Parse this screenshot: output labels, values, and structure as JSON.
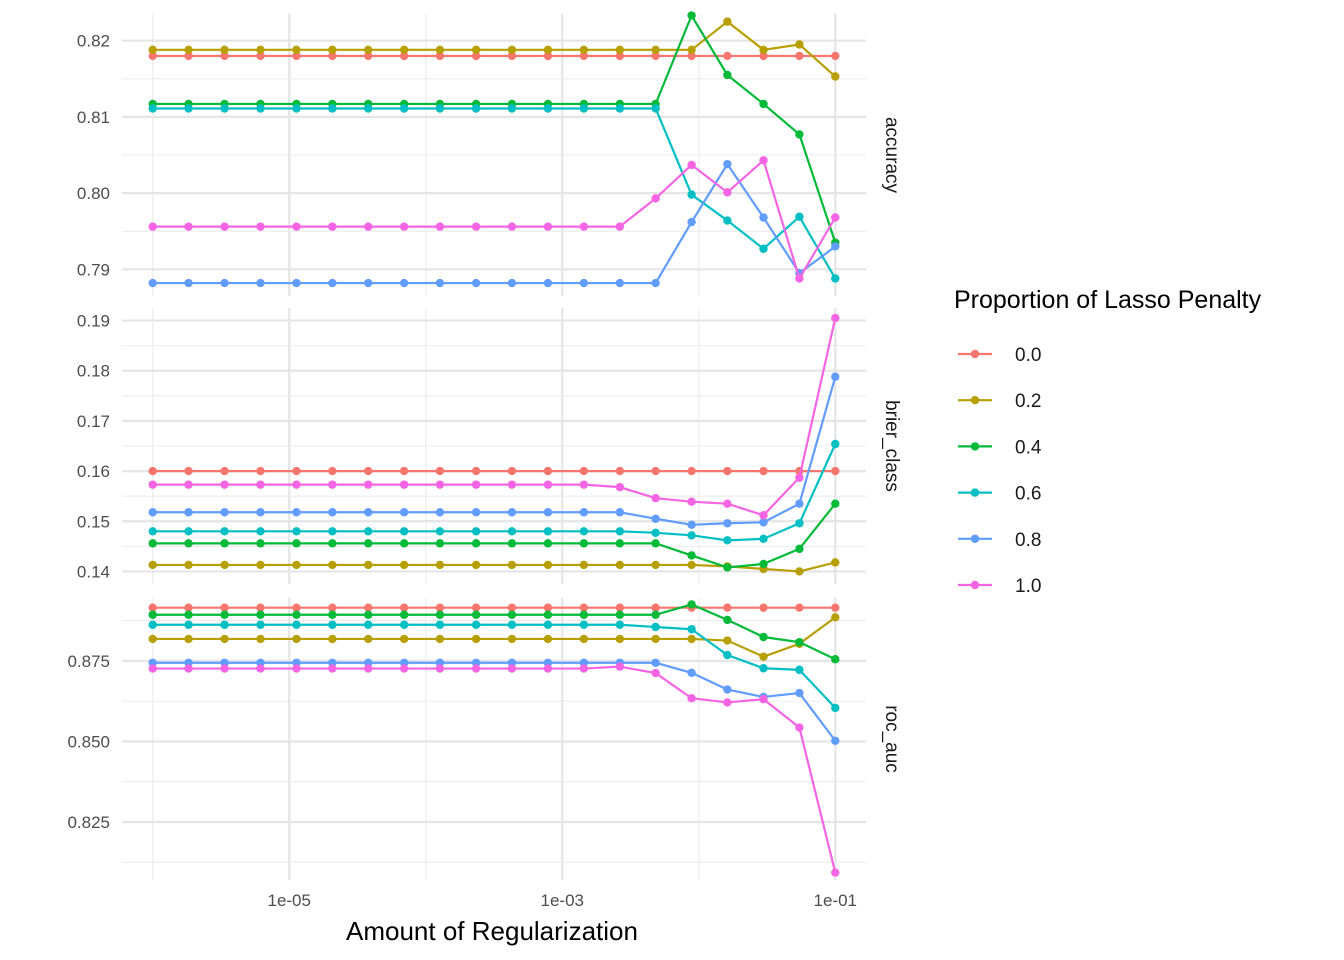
{
  "chart_data": {
    "type": "line",
    "xlabel": "Amount of Regularization",
    "x_scale": "log10",
    "x": [
      1e-06,
      1.83e-06,
      3.36e-06,
      6.16e-06,
      1.13e-05,
      2.07e-05,
      3.79e-05,
      6.95e-05,
      0.000127,
      0.000234,
      0.000428,
      0.000785,
      0.00144,
      0.00264,
      0.00483,
      0.00886,
      0.0162,
      0.0298,
      0.0546,
      0.1
    ],
    "x_tick_labels": [
      "1e-05",
      "1e-03",
      "1e-01"
    ],
    "legend": {
      "title": "Proportion of Lasso Penalty",
      "position": "right"
    },
    "series": [
      {
        "name": "0.0",
        "color": "#F8766D"
      },
      {
        "name": "0.2",
        "color": "#B79F00"
      },
      {
        "name": "0.4",
        "color": "#00BA38"
      },
      {
        "name": "0.6",
        "color": "#00BFC4"
      },
      {
        "name": "0.8",
        "color": "#619CFF"
      },
      {
        "name": "1.0",
        "color": "#F564E3"
      }
    ],
    "panels": [
      {
        "strip": "accuracy",
        "ylim": [
          0.7865,
          0.8235
        ],
        "y_ticks": [
          0.79,
          0.8,
          0.81,
          0.82
        ],
        "y_tick_labels": [
          "0.79",
          "0.80",
          "0.81",
          "0.82"
        ],
        "values": [
          [
            0.818,
            0.818,
            0.818,
            0.818,
            0.818,
            0.818,
            0.818,
            0.818,
            0.818,
            0.818,
            0.818,
            0.818,
            0.818,
            0.818,
            0.818,
            0.818,
            0.818,
            0.818,
            0.818,
            0.818
          ],
          [
            0.8188,
            0.8188,
            0.8188,
            0.8188,
            0.8188,
            0.8188,
            0.8188,
            0.8188,
            0.8188,
            0.8188,
            0.8188,
            0.8188,
            0.8188,
            0.8188,
            0.8188,
            0.8188,
            0.8225,
            0.8188,
            0.8195,
            0.8153
          ],
          [
            0.8117,
            0.8117,
            0.8117,
            0.8117,
            0.8117,
            0.8117,
            0.8117,
            0.8117,
            0.8117,
            0.8117,
            0.8117,
            0.8117,
            0.8117,
            0.8117,
            0.8117,
            0.8233,
            0.8155,
            0.8117,
            0.8077,
            0.7935
          ],
          [
            0.8111,
            0.8111,
            0.8111,
            0.8111,
            0.8111,
            0.8111,
            0.8111,
            0.8111,
            0.8111,
            0.8111,
            0.8111,
            0.8111,
            0.8111,
            0.8111,
            0.8111,
            0.7998,
            0.7964,
            0.7927,
            0.7969,
            0.7888
          ],
          [
            0.7882,
            0.7882,
            0.7882,
            0.7882,
            0.7882,
            0.7882,
            0.7882,
            0.7882,
            0.7882,
            0.7882,
            0.7882,
            0.7882,
            0.7882,
            0.7882,
            0.7882,
            0.7962,
            0.8038,
            0.7968,
            0.7895,
            0.793
          ],
          [
            0.7956,
            0.7956,
            0.7956,
            0.7956,
            0.7956,
            0.7956,
            0.7956,
            0.7956,
            0.7956,
            0.7956,
            0.7956,
            0.7956,
            0.7956,
            0.7956,
            0.7993,
            0.8037,
            0.8001,
            0.8043,
            0.7888,
            0.7968
          ]
        ]
      },
      {
        "strip": "brier_class",
        "ylim": [
          0.1375,
          0.1925
        ],
        "y_ticks": [
          0.14,
          0.15,
          0.16,
          0.17,
          0.18,
          0.19
        ],
        "y_tick_labels": [
          "0.14",
          "0.15",
          "0.16",
          "0.17",
          "0.18",
          "0.19"
        ],
        "values": [
          [
            0.16,
            0.16,
            0.16,
            0.16,
            0.16,
            0.16,
            0.16,
            0.16,
            0.16,
            0.16,
            0.16,
            0.16,
            0.16,
            0.16,
            0.16,
            0.16,
            0.16,
            0.16,
            0.16,
            0.16
          ],
          [
            0.1413,
            0.1413,
            0.1413,
            0.1413,
            0.1413,
            0.1413,
            0.1413,
            0.1413,
            0.1413,
            0.1413,
            0.1413,
            0.1413,
            0.1413,
            0.1413,
            0.1413,
            0.1413,
            0.141,
            0.1405,
            0.14,
            0.1418
          ],
          [
            0.1456,
            0.1456,
            0.1456,
            0.1456,
            0.1456,
            0.1456,
            0.1456,
            0.1456,
            0.1456,
            0.1456,
            0.1456,
            0.1456,
            0.1456,
            0.1456,
            0.1456,
            0.1432,
            0.1408,
            0.1415,
            0.1445,
            0.1535
          ],
          [
            0.148,
            0.148,
            0.148,
            0.148,
            0.148,
            0.148,
            0.148,
            0.148,
            0.148,
            0.148,
            0.148,
            0.148,
            0.148,
            0.148,
            0.1477,
            0.1472,
            0.1462,
            0.1465,
            0.1496,
            0.1654
          ],
          [
            0.1518,
            0.1518,
            0.1518,
            0.1518,
            0.1518,
            0.1518,
            0.1518,
            0.1518,
            0.1518,
            0.1518,
            0.1518,
            0.1518,
            0.1518,
            0.1518,
            0.1505,
            0.1493,
            0.1496,
            0.1498,
            0.1535,
            0.1788
          ],
          [
            0.1573,
            0.1573,
            0.1573,
            0.1573,
            0.1573,
            0.1573,
            0.1573,
            0.1573,
            0.1573,
            0.1573,
            0.1573,
            0.1573,
            0.1573,
            0.1568,
            0.1546,
            0.1539,
            0.1535,
            0.1512,
            0.1587,
            0.1905
          ]
        ]
      },
      {
        "strip": "roc_auc",
        "ylim": [
          0.807,
          0.8945
        ],
        "y_ticks": [
          0.825,
          0.85,
          0.875
        ],
        "y_tick_labels": [
          "0.825",
          "0.850",
          "0.875"
        ],
        "values": [
          [
            0.8915,
            0.8915,
            0.8915,
            0.8915,
            0.8915,
            0.8915,
            0.8915,
            0.8915,
            0.8915,
            0.8915,
            0.8915,
            0.8915,
            0.8915,
            0.8915,
            0.8915,
            0.8915,
            0.8915,
            0.8915,
            0.8915,
            0.8915
          ],
          [
            0.8818,
            0.8818,
            0.8818,
            0.8818,
            0.8818,
            0.8818,
            0.8818,
            0.8818,
            0.8818,
            0.8818,
            0.8818,
            0.8818,
            0.8818,
            0.8818,
            0.8818,
            0.8818,
            0.8813,
            0.8763,
            0.8803,
            0.8885
          ],
          [
            0.8893,
            0.8893,
            0.8893,
            0.8893,
            0.8893,
            0.8893,
            0.8893,
            0.8893,
            0.8893,
            0.8893,
            0.8893,
            0.8893,
            0.8893,
            0.8893,
            0.8893,
            0.8925,
            0.8877,
            0.8824,
            0.8808,
            0.8755
          ],
          [
            0.8862,
            0.8862,
            0.8862,
            0.8862,
            0.8862,
            0.8862,
            0.8862,
            0.8862,
            0.8862,
            0.8862,
            0.8862,
            0.8862,
            0.8862,
            0.8862,
            0.8855,
            0.8848,
            0.8768,
            0.8727,
            0.8722,
            0.8604
          ],
          [
            0.8744,
            0.8744,
            0.8744,
            0.8744,
            0.8744,
            0.8744,
            0.8744,
            0.8744,
            0.8744,
            0.8744,
            0.8744,
            0.8744,
            0.8744,
            0.8744,
            0.8744,
            0.8713,
            0.8661,
            0.8638,
            0.865,
            0.8502
          ],
          [
            0.8726,
            0.8726,
            0.8726,
            0.8726,
            0.8726,
            0.8726,
            0.8726,
            0.8726,
            0.8726,
            0.8726,
            0.8726,
            0.8726,
            0.8726,
            0.8732,
            0.8712,
            0.8634,
            0.8621,
            0.8631,
            0.8543,
            0.8093
          ]
        ]
      }
    ]
  }
}
